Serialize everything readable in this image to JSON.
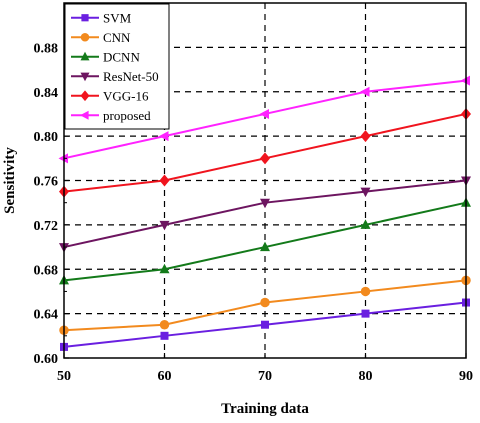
{
  "chart_data": {
    "type": "line",
    "xlabel": "Training data",
    "ylabel": "Sensitivity",
    "x": [
      50,
      60,
      70,
      80,
      90
    ],
    "xlim": [
      50,
      90
    ],
    "ylim": [
      0.6,
      0.92
    ],
    "x_ticks": [
      "50",
      "60",
      "70",
      "80",
      "90"
    ],
    "y_ticks": [
      "0.60",
      "0.64",
      "0.68",
      "0.72",
      "0.76",
      "0.80",
      "0.84",
      "0.88"
    ],
    "grid": true,
    "legend_position": "top-left",
    "series": [
      {
        "name": "SVM",
        "color": "#6a1fe0",
        "marker": "square",
        "values": [
          0.61,
          0.62,
          0.63,
          0.64,
          0.65
        ]
      },
      {
        "name": "CNN",
        "color": "#f28a1e",
        "marker": "circle",
        "values": [
          0.625,
          0.63,
          0.65,
          0.66,
          0.67
        ]
      },
      {
        "name": "DCNN",
        "color": "#137a1a",
        "marker": "triangle-up",
        "values": [
          0.67,
          0.68,
          0.7,
          0.72,
          0.74
        ]
      },
      {
        "name": "ResNet-50",
        "color": "#6d1560",
        "marker": "triangle-down",
        "values": [
          0.7,
          0.72,
          0.74,
          0.75,
          0.76
        ]
      },
      {
        "name": "VGG-16",
        "color": "#f0141e",
        "marker": "diamond",
        "values": [
          0.75,
          0.76,
          0.78,
          0.8,
          0.82
        ]
      },
      {
        "name": "proposed",
        "color": "#ff22ff",
        "marker": "triangle-left",
        "values": [
          0.78,
          0.8,
          0.82,
          0.84,
          0.85
        ]
      }
    ]
  }
}
